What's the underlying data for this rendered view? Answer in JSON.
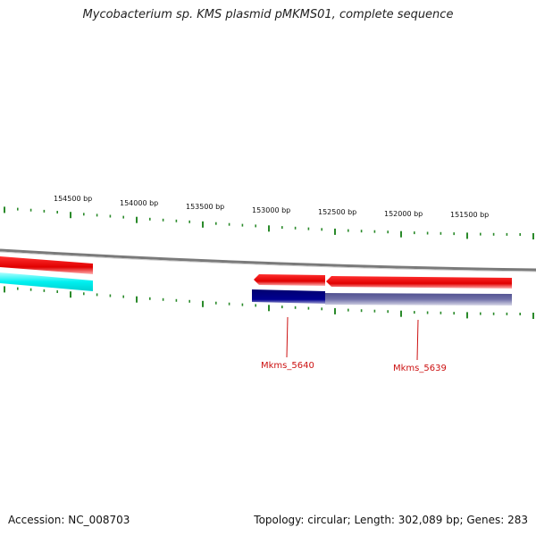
{
  "title": "Mycobacterium sp. KMS plasmid pMKMS01, complete sequence",
  "footer": {
    "accession": "Accession: NC_008703",
    "topology": "Topology: circular; Length: 302,089 bp; Genes: 283"
  },
  "scale_labels": [
    "154500 bp",
    "154000 bp",
    "153500 bp",
    "153000 bp",
    "152500 bp",
    "152000 bp",
    "151500 bp"
  ],
  "genes": [
    {
      "label": "Mkms_5640"
    },
    {
      "label": "Mkms_5639"
    }
  ],
  "colors": {
    "tick": "#2a8a2a",
    "backbone": "#808080",
    "forward_gene": "#ee1111",
    "reverse_gene_a": "#00e5e5",
    "reverse_gene_b": "#000080",
    "gene_label": "#cc1111"
  }
}
